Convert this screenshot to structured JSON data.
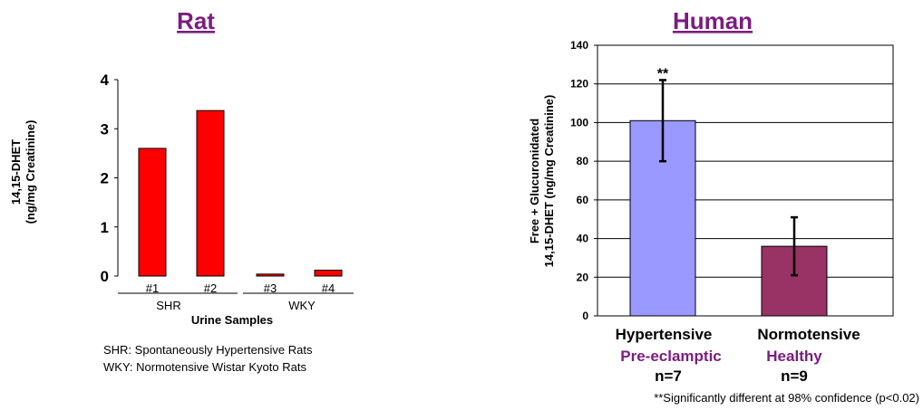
{
  "colors": {
    "title": "#7B1C7F",
    "rat_bar": "#FF0000",
    "human_bar_1": "#9999FF",
    "human_bar_2": "#993366",
    "subgroup_text": "#7B1C7F"
  },
  "chart_data": [
    {
      "type": "bar",
      "title": "Rat",
      "ylabel_lines": [
        "14,15-DHET",
        "(ng/mg Creatinine)"
      ],
      "xlabel": "Urine Samples",
      "categories": [
        "#1",
        "#2",
        "#3",
        "#4"
      ],
      "groups": [
        {
          "label": "SHR",
          "members": [
            "#1",
            "#2"
          ]
        },
        {
          "label": "WKY",
          "members": [
            "#3",
            "#4"
          ]
        }
      ],
      "values": [
        2.6,
        3.37,
        0.04,
        0.12
      ],
      "ylim": [
        0,
        4
      ],
      "yticks": [
        "0",
        "1",
        "2",
        "3",
        "4"
      ],
      "grid": false,
      "footnotes": [
        "SHR: Spontaneously Hypertensive Rats",
        "WKY: Normotensive Wistar Kyoto Rats"
      ]
    },
    {
      "type": "bar",
      "title": "Human",
      "ylabel_lines": [
        "Free + Glucuronidated",
        "14,15-DHET (ng/mg Creatinine)"
      ],
      "categories": [
        "Hypertensive",
        "Normotensive"
      ],
      "subcategories": [
        "Pre-eclamptic",
        "Healthy"
      ],
      "counts": [
        "n=7",
        "n=9"
      ],
      "values": [
        101,
        36
      ],
      "errors": [
        21,
        15
      ],
      "annotations": [
        {
          "category": "Hypertensive",
          "text": "**"
        }
      ],
      "ylim": [
        0,
        140
      ],
      "yticks": [
        "0",
        "20",
        "40",
        "60",
        "80",
        "100",
        "120",
        "140"
      ],
      "grid": true,
      "footnote": "**Significantly different at 98% confidence (p<0.02)"
    }
  ]
}
